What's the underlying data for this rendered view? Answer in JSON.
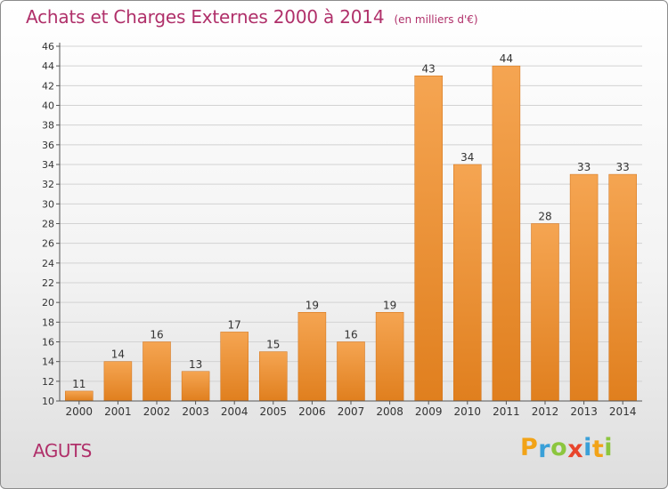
{
  "header": {
    "title": "Achats et Charges Externes 2000 à 2014",
    "subtitle": "(en milliers d'€)"
  },
  "footer": {
    "commune": "AGUTS",
    "brand": {
      "letters": [
        "P",
        "r",
        "o",
        "x",
        "i",
        "t",
        "i"
      ],
      "colors": [
        "#f2a317",
        "#3aa0d8",
        "#8cc63e",
        "#e8452c",
        "#3aa0d8",
        "#f2a317",
        "#8cc63e"
      ]
    }
  },
  "colors": {
    "bar_light": "#f5a552",
    "bar_dark": "#e07f1e",
    "bar_edge": "#d06f14",
    "title": "#b0306a",
    "grid": "#d2d2d2"
  },
  "chart_data": {
    "type": "bar",
    "title": "Achats et Charges Externes 2000 à 2014",
    "subtitle": "(en milliers d'€)",
    "categories": [
      "2000",
      "2001",
      "2002",
      "2003",
      "2004",
      "2005",
      "2006",
      "2007",
      "2008",
      "2009",
      "2010",
      "2011",
      "2012",
      "2013",
      "2014"
    ],
    "values": [
      11,
      14,
      16,
      13,
      17,
      15,
      19,
      16,
      19,
      43,
      34,
      44,
      28,
      33,
      33
    ],
    "ylim": [
      10,
      46
    ],
    "yticks": [
      10,
      12,
      14,
      16,
      18,
      20,
      22,
      24,
      26,
      28,
      30,
      32,
      34,
      36,
      38,
      40,
      42,
      44,
      46
    ],
    "grid": true,
    "data_labels": true
  }
}
